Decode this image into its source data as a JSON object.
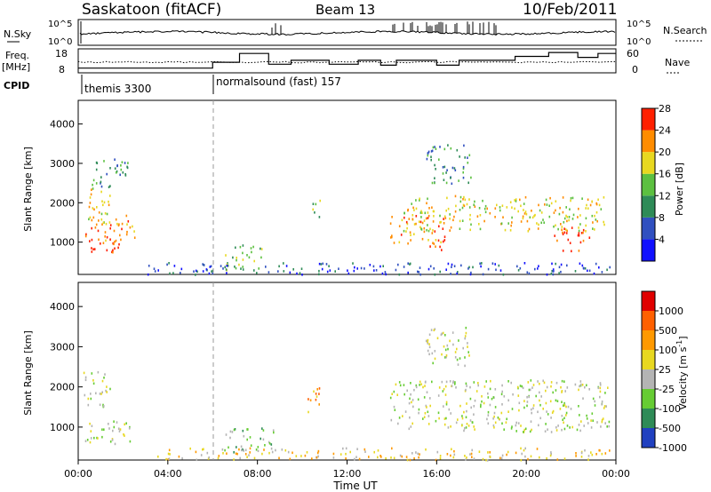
{
  "header": {
    "station": "Saskatoon (fitACF)",
    "beam": "Beam 13",
    "date": "10/Feb/2011"
  },
  "noise_panel": {
    "left_label": "N.Sky",
    "left_ticks": [
      "10^5",
      "10^0"
    ],
    "right_label": "N.Search",
    "right_ticks": [
      "10^5",
      "10^0"
    ]
  },
  "freq_panel": {
    "left_label_1": "Freq.",
    "left_label_2": "[MHz]",
    "left_ticks": [
      "18",
      "8"
    ],
    "right_label": "Nave",
    "right_ticks": [
      "60",
      "0"
    ]
  },
  "cpid": {
    "label": "CPID",
    "programs": [
      {
        "name": "themis 3300",
        "start_hour": 0
      },
      {
        "name": "normalsound (fast) 157",
        "start_hour": 6
      }
    ]
  },
  "chart_data": [
    {
      "type": "heatmap",
      "title": "",
      "ylabel": "Slant Range [km]",
      "xlabel": "",
      "xlim_hours": [
        0,
        24
      ],
      "ylim": [
        180,
        4600
      ],
      "yticks": [
        "1000",
        "2000",
        "3000",
        "4000"
      ],
      "colorbar": {
        "label": "Power [dB]",
        "ticks": [
          "4",
          "8",
          "12",
          "16",
          "20",
          "24",
          "28"
        ],
        "colors": [
          "#1010ff",
          "#3050c0",
          "#2e8b57",
          "#5cc040",
          "#e8d820",
          "#ff8c00",
          "#ff2000"
        ]
      },
      "scatter_regions": [
        {
          "t0": 0.2,
          "t1": 1.8,
          "r0": 700,
          "r1": 1100,
          "level": 6
        },
        {
          "t0": 0.3,
          "t1": 2.6,
          "r0": 1000,
          "r1": 1700,
          "level": 5
        },
        {
          "t0": 0.2,
          "t1": 1.4,
          "r0": 1500,
          "r1": 2400,
          "level": 4
        },
        {
          "t0": 0.6,
          "t1": 2.2,
          "r0": 2400,
          "r1": 3200,
          "level": 2
        },
        {
          "t0": 6.5,
          "t1": 8.2,
          "r0": 300,
          "r1": 1000,
          "level": 3
        },
        {
          "t0": 10.4,
          "t1": 10.8,
          "r0": 1500,
          "r1": 2100,
          "level": 3
        },
        {
          "t0": 13.9,
          "t1": 16.3,
          "r0": 900,
          "r1": 1700,
          "level": 5
        },
        {
          "t0": 14.5,
          "t1": 23.7,
          "r0": 1300,
          "r1": 2200,
          "level": 4
        },
        {
          "t0": 15.5,
          "t1": 17.5,
          "r0": 2500,
          "r1": 3500,
          "level": 2
        },
        {
          "t0": 21.2,
          "t1": 22.8,
          "r0": 800,
          "r1": 1400,
          "level": 6
        },
        {
          "t0": 16.0,
          "t1": 16.4,
          "r0": 800,
          "r1": 1200,
          "level": 6
        },
        {
          "t0": 3.0,
          "t1": 23.8,
          "r0": 200,
          "r1": 500,
          "level": 1
        }
      ]
    },
    {
      "type": "heatmap",
      "title": "",
      "ylabel": "Slant Range [km]",
      "xlabel": "Time UT",
      "xlim_hours": [
        0,
        24
      ],
      "ylim": [
        180,
        4600
      ],
      "xticks": [
        "00:00",
        "04:00",
        "08:00",
        "12:00",
        "16:00",
        "20:00",
        "00:00"
      ],
      "yticks": [
        "1000",
        "2000",
        "3000",
        "4000"
      ],
      "colorbar": {
        "label": "Velocity [m s^-1]",
        "ticks": [
          "1000",
          "500",
          "100",
          "25",
          "-25",
          "-100",
          "-500",
          "-1000"
        ],
        "colors": [
          "#2040c0",
          "#2e8b57",
          "#66cc33",
          "#b4b4b4",
          "#e8d820",
          "#ff9900",
          "#ff6000",
          "#e00000"
        ]
      },
      "scatter_regions": [
        {
          "t0": 0.3,
          "t1": 2.5,
          "r0": 600,
          "r1": 1200,
          "level": 3
        },
        {
          "t0": 0.2,
          "t1": 1.4,
          "r0": 1500,
          "r1": 2400,
          "level": 3
        },
        {
          "t0": 10.2,
          "t1": 10.9,
          "r0": 1400,
          "r1": 2000,
          "level": 5
        },
        {
          "t0": 6.5,
          "t1": 8.8,
          "r0": 400,
          "r1": 1000,
          "level": 2
        },
        {
          "t0": 13.9,
          "t1": 23.7,
          "r0": 900,
          "r1": 2200,
          "level": 3
        },
        {
          "t0": 15.5,
          "t1": 17.5,
          "r0": 2500,
          "r1": 3500,
          "level": 3
        },
        {
          "t0": 3.0,
          "t1": 23.8,
          "r0": 200,
          "r1": 500,
          "level": 4
        }
      ]
    }
  ]
}
